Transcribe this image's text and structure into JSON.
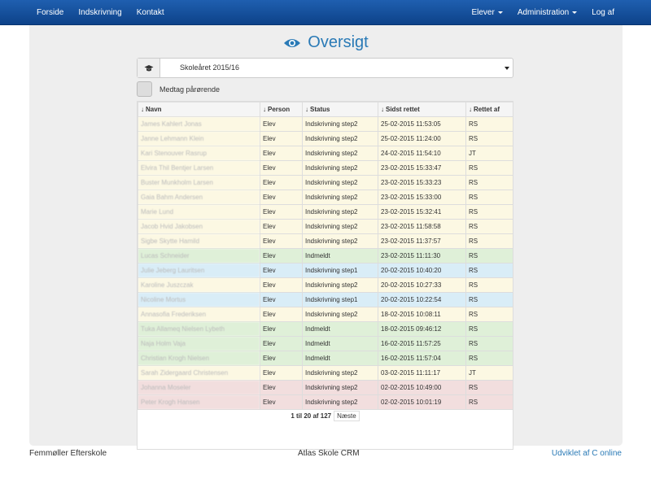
{
  "nav": {
    "left": [
      "Forside",
      "Indskrivning",
      "Kontakt"
    ],
    "right_elever": "Elever",
    "right_admin": "Administration",
    "right_logout": "Log af"
  },
  "page_title": "Oversigt",
  "select": {
    "value": "Skoleåret 2015/16"
  },
  "checkbox": {
    "label": "Medtag pårørende"
  },
  "table": {
    "headers": [
      "Navn",
      "Person",
      "Status",
      "Sidst rettet",
      "Rettet af"
    ],
    "rows": [
      {
        "name": "James Kahlert Jonas",
        "person": "Elev",
        "status": "Indskrivning step2",
        "date": "25-02-2015 11:53:05",
        "by": "RS",
        "color": "yellow"
      },
      {
        "name": "Janne Lehmann Klein",
        "person": "Elev",
        "status": "Indskrivning step2",
        "date": "25-02-2015 11:24:00",
        "by": "RS",
        "color": "yellow"
      },
      {
        "name": "Kari Stenouver Rasrup",
        "person": "Elev",
        "status": "Indskrivning step2",
        "date": "24-02-2015 11:54:10",
        "by": "JT",
        "color": "yellow"
      },
      {
        "name": "Elvira Thil Bentjer Larsen",
        "person": "Elev",
        "status": "Indskrivning step2",
        "date": "23-02-2015 15:33:47",
        "by": "RS",
        "color": "yellow"
      },
      {
        "name": "Buster Munkholm Larsen",
        "person": "Elev",
        "status": "Indskrivning step2",
        "date": "23-02-2015 15:33:23",
        "by": "RS",
        "color": "yellow"
      },
      {
        "name": "Gaia Bahm Andersen",
        "person": "Elev",
        "status": "Indskrivning step2",
        "date": "23-02-2015 15:33:00",
        "by": "RS",
        "color": "yellow"
      },
      {
        "name": "Marie Lund",
        "person": "Elev",
        "status": "Indskrivning step2",
        "date": "23-02-2015 15:32:41",
        "by": "RS",
        "color": "yellow"
      },
      {
        "name": "Jacob Hvid Jakobsen",
        "person": "Elev",
        "status": "Indskrivning step2",
        "date": "23-02-2015 11:58:58",
        "by": "RS",
        "color": "yellow"
      },
      {
        "name": "Sigbe Skytte Hamild",
        "person": "Elev",
        "status": "Indskrivning step2",
        "date": "23-02-2015 11:37:57",
        "by": "RS",
        "color": "yellow"
      },
      {
        "name": "Lucas Schneider",
        "person": "Elev",
        "status": "Indmeldt",
        "date": "23-02-2015 11:11:30",
        "by": "RS",
        "color": "green"
      },
      {
        "name": "Julie Jeberg Lauritsen",
        "person": "Elev",
        "status": "Indskrivning step1",
        "date": "20-02-2015 10:40:20",
        "by": "RS",
        "color": "blue"
      },
      {
        "name": "Karoline Juszczak",
        "person": "Elev",
        "status": "Indskrivning step2",
        "date": "20-02-2015 10:27:33",
        "by": "RS",
        "color": "yellow"
      },
      {
        "name": "Nicoline Mortus",
        "person": "Elev",
        "status": "Indskrivning step1",
        "date": "20-02-2015 10:22:54",
        "by": "RS",
        "color": "blue"
      },
      {
        "name": "Annasofia Frederiksen",
        "person": "Elev",
        "status": "Indskrivning step2",
        "date": "18-02-2015 10:08:11",
        "by": "RS",
        "color": "yellow"
      },
      {
        "name": "Tuka Allameq Nielsen Lybeth",
        "person": "Elev",
        "status": "Indmeldt",
        "date": "18-02-2015 09:46:12",
        "by": "RS",
        "color": "green"
      },
      {
        "name": "Naja Holm Vaja",
        "person": "Elev",
        "status": "Indmeldt",
        "date": "16-02-2015 11:57:25",
        "by": "RS",
        "color": "green"
      },
      {
        "name": "Christian Krogh Nielsen",
        "person": "Elev",
        "status": "Indmeldt",
        "date": "16-02-2015 11:57:04",
        "by": "RS",
        "color": "green"
      },
      {
        "name": "Sarah Zidergaard Christensen",
        "person": "Elev",
        "status": "Indskrivning step2",
        "date": "03-02-2015 11:11:17",
        "by": "JT",
        "color": "yellow"
      },
      {
        "name": "Johanna Moseler",
        "person": "Elev",
        "status": "Indskrivning step2",
        "date": "02-02-2015 10:49:00",
        "by": "RS",
        "color": "red"
      },
      {
        "name": "Peter Krogh Hansen",
        "person": "Elev",
        "status": "Indskrivning step2",
        "date": "02-02-2015 10:01:19",
        "by": "RS",
        "color": "red"
      }
    ]
  },
  "pagination": {
    "summary": "1 til 20 af 127",
    "next": "Næste"
  },
  "footer": {
    "left": "Femmøller Efterskole",
    "center": "Atlas Skole CRM",
    "right": "Udviklet af C online"
  },
  "icons": {
    "title": "eye-icon",
    "select_addon": "graduation-cap-icon",
    "sort": "arrow-down-icon"
  },
  "colors": {
    "navbar": "#1f5fb0",
    "accent": "#2a7ab6"
  }
}
